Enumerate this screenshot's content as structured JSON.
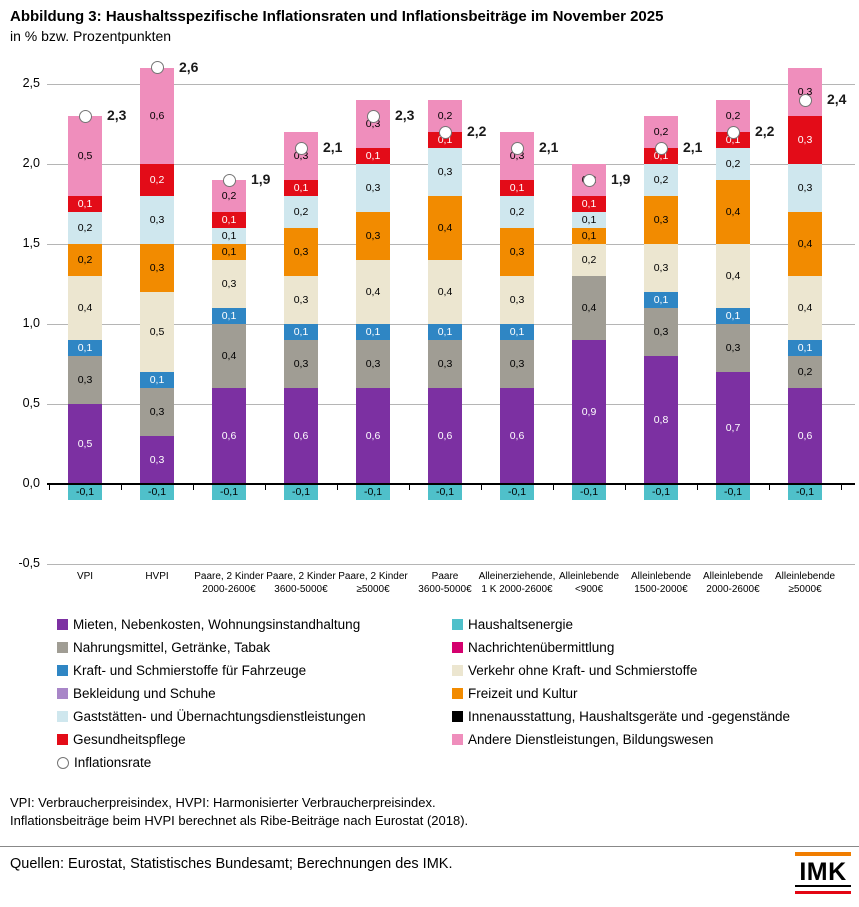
{
  "title": "Abbildung 3: Haushaltsspezifische Inflationsraten und Inflationsbeiträge im November 2025",
  "subtitle": "in % bzw. Prozentpunkten",
  "chart_data": {
    "type": "bar",
    "stacked": true,
    "title": "Haushaltsspezifische Inflationsraten und Inflationsbeiträge im November 2025",
    "ylabel": "in % bzw. Prozentpunkten",
    "ylim": [
      -0.5,
      2.5
    ],
    "ytick_values": [
      2.5,
      2.0,
      1.5,
      1.0,
      0.5,
      0.0,
      -0.5
    ],
    "ytick_labels": [
      "2,5",
      "2,0",
      "1,5",
      "1,0",
      "0,5",
      "0,0",
      "-0,5"
    ],
    "grid": true,
    "legend_position": "bottom",
    "categories": [
      {
        "line1": "VPI",
        "line2": ""
      },
      {
        "line1": "HVPI",
        "line2": ""
      },
      {
        "line1": "Paare, 2 Kinder",
        "line2": "2000-2600€"
      },
      {
        "line1": "Paare, 2 Kinder",
        "line2": "3600-5000€"
      },
      {
        "line1": "Paare, 2 Kinder",
        "line2": "≥5000€"
      },
      {
        "line1": "Paare",
        "line2": "3600-5000€"
      },
      {
        "line1": "Alleinerziehende,",
        "line2": "1 K 2000-2600€"
      },
      {
        "line1": "Alleinlebende",
        "line2": "<900€"
      },
      {
        "line1": "Alleinlebende",
        "line2": "1500-2000€"
      },
      {
        "line1": "Alleinlebende",
        "line2": "2000-2600€"
      },
      {
        "line1": "Alleinlebende",
        "line2": "≥5000€"
      }
    ],
    "series": [
      {
        "name": "Mieten, Nebenkosten, Wohnungsinstandhaltung",
        "color": "#7c30a2",
        "label_color": "#ffffff",
        "values": [
          0.5,
          0.3,
          0.6,
          0.6,
          0.6,
          0.6,
          0.6,
          0.9,
          0.8,
          0.7,
          0.6
        ]
      },
      {
        "name": "Nahrungsmittel, Getränke, Tabak",
        "color": "#a09d94",
        "label_color": "#000000",
        "values": [
          0.3,
          0.3,
          0.4,
          0.3,
          0.3,
          0.3,
          0.3,
          0.4,
          0.3,
          0.3,
          0.2
        ]
      },
      {
        "name": "Kraft- und Schmierstoffe für Fahrzeuge",
        "color": "#2f86c4",
        "label_color": "#ffffff",
        "values": [
          0.1,
          0.1,
          0.1,
          0.1,
          0.1,
          0.1,
          0.1,
          0,
          0.1,
          0.1,
          0.1
        ]
      },
      {
        "name": "Verkehr ohne Kraft- und Schmierstoffe",
        "color": "#ece6d0",
        "label_color": "#000000",
        "values": [
          0.4,
          0.5,
          0.3,
          0.3,
          0.4,
          0.4,
          0.3,
          0.2,
          0.3,
          0.4,
          0.4
        ]
      },
      {
        "name": "Freizeit und Kultur",
        "color": "#f28b00",
        "label_color": "#000000",
        "values": [
          0.2,
          0.3,
          0.1,
          0.3,
          0.3,
          0.4,
          0.3,
          0.1,
          0.3,
          0.4,
          0.4
        ]
      },
      {
        "name": "Gaststätten- und Übernachtungsdienstleistungen",
        "color": "#cfe7ee",
        "label_color": "#000000",
        "values": [
          0.2,
          0.3,
          0.1,
          0.2,
          0.3,
          0.3,
          0.2,
          0.1,
          0.2,
          0.2,
          0.3
        ]
      },
      {
        "name": "Gesundheitspflege",
        "color": "#e30c18",
        "label_color": "#ffffff",
        "values": [
          0.1,
          0.2,
          0.1,
          0.1,
          0.1,
          0.1,
          0.1,
          0.1,
          0.1,
          0.1,
          0.3
        ]
      },
      {
        "name": "Andere Dienstleistungen, Bildungswesen",
        "color": "#ef8ebc",
        "label_color": "#000000",
        "values": [
          0.5,
          0.6,
          0.2,
          0.3,
          0.3,
          0.2,
          0.3,
          0.2,
          0.2,
          0.2,
          0.3
        ]
      },
      {
        "name": "Haushaltsenergie",
        "color": "#4fc0ca",
        "label_color": "#000000",
        "values": [
          -0.1,
          -0.1,
          -0.1,
          -0.1,
          -0.1,
          -0.1,
          -0.1,
          -0.1,
          -0.1,
          -0.1,
          -0.1
        ]
      }
    ],
    "inflation_rate": {
      "name": "Inflationsrate",
      "marker": "open-circle",
      "values": [
        2.3,
        2.6,
        1.9,
        2.1,
        2.3,
        2.2,
        2.1,
        1.9,
        2.1,
        2.2,
        2.4
      ]
    }
  },
  "legend": {
    "left": [
      {
        "label": "Mieten, Nebenkosten, Wohnungsinstandhaltung",
        "color": "#7c30a2",
        "shape": "square"
      },
      {
        "label": "Nahrungsmittel, Getränke, Tabak",
        "color": "#a09d94",
        "shape": "square"
      },
      {
        "label": "Kraft- und Schmierstoffe für Fahrzeuge",
        "color": "#2f86c4",
        "shape": "square"
      },
      {
        "label": "Bekleidung und Schuhe",
        "color": "#a886c8",
        "shape": "square"
      },
      {
        "label": "Gaststätten- und Übernachtungsdienstleistungen",
        "color": "#cfe7ee",
        "shape": "square"
      },
      {
        "label": "Gesundheitspflege",
        "color": "#e30c18",
        "shape": "square"
      },
      {
        "label": "Inflationsrate",
        "color": "#ffffff",
        "shape": "circle"
      }
    ],
    "right": [
      {
        "label": "Haushaltsenergie",
        "color": "#4fc0ca",
        "shape": "square"
      },
      {
        "label": "Nachrichtenübermittlung",
        "color": "#d4006e",
        "shape": "square"
      },
      {
        "label": "Verkehr ohne Kraft- und Schmierstoffe",
        "color": "#ece6d0",
        "shape": "square"
      },
      {
        "label": "Freizeit und Kultur",
        "color": "#f28b00",
        "shape": "square"
      },
      {
        "label": "Innenausstattung, Haushaltsgeräte und -gegenstände",
        "color": "#000000",
        "shape": "square"
      },
      {
        "label": "Andere Dienstleistungen, Bildungswesen",
        "color": "#ef8ebc",
        "shape": "square"
      }
    ]
  },
  "footnotes": [
    "VPI: Verbraucherpreisindex, HVPI: Harmonisierter Verbraucherpreisindex.",
    "Inflationsbeiträge beim HVPI berechnet als Ribe-Beiträge nach Eurostat (2018)."
  ],
  "source": "Quellen: Eurostat, Statistisches Bundesamt; Berechnungen des IMK.",
  "logo": {
    "text": "IMK",
    "top_bar_color": "#f07d00",
    "bottom_bar_color": "#e30613"
  }
}
